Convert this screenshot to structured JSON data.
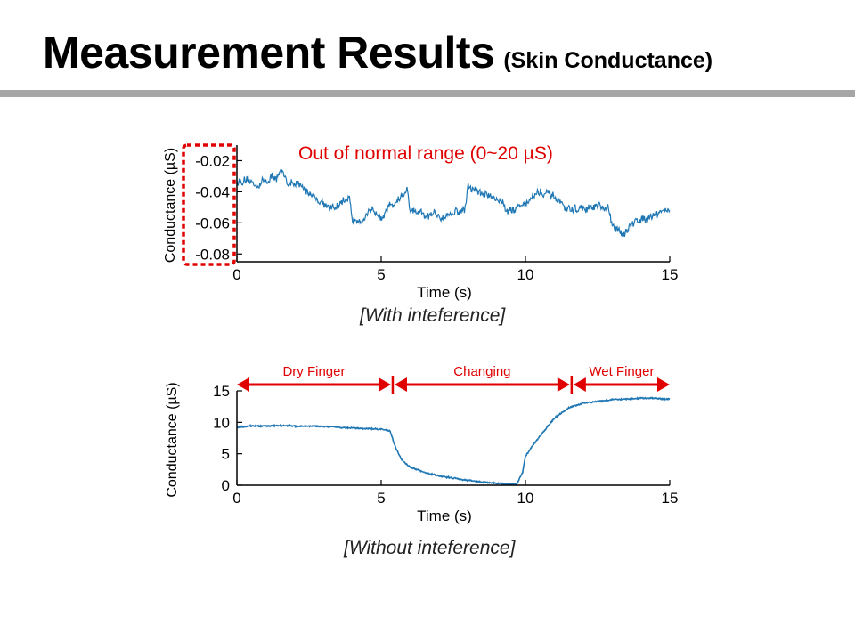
{
  "slide": {
    "title": "Measurement Results",
    "subtitle": "(Skin Conductance)"
  },
  "colors": {
    "series": "#1f77b4",
    "annotation": "#e00000",
    "rule": "#a6a6a6"
  },
  "chart_data": [
    {
      "type": "line",
      "title": "",
      "xlabel": "Time (s)",
      "ylabel": "Conductance (µS)",
      "xlim": [
        0,
        15
      ],
      "ylim": [
        -0.085,
        -0.01
      ],
      "xticks": [
        0,
        5,
        10,
        15
      ],
      "yticks": [
        -0.02,
        -0.04,
        -0.06,
        -0.08
      ],
      "ytick_labels": [
        "-0.02",
        "-0.04",
        "-0.06",
        "-0.08"
      ],
      "grid": false,
      "annotation": "Out of normal range (0~20 µS)",
      "caption": "[With inteference]",
      "series": [
        {
          "x": [
            0,
            0.5,
            1.0,
            1.5,
            2.0,
            2.5,
            3.0,
            3.5,
            3.9,
            4.0,
            4.5,
            5.0,
            5.5,
            5.9,
            6.0,
            6.5,
            7.0,
            7.5,
            7.9,
            8.0,
            8.5,
            9.0,
            9.5,
            10.0,
            10.5,
            11.0,
            11.5,
            12.0,
            12.5,
            12.9,
            13.0,
            13.5,
            14.0,
            14.5,
            15.0
          ],
          "y": [
            -0.033,
            -0.036,
            -0.033,
            -0.029,
            -0.036,
            -0.04,
            -0.047,
            -0.051,
            -0.043,
            -0.058,
            -0.056,
            -0.053,
            -0.046,
            -0.039,
            -0.053,
            -0.057,
            -0.055,
            -0.053,
            -0.052,
            -0.037,
            -0.041,
            -0.044,
            -0.052,
            -0.046,
            -0.04,
            -0.045,
            -0.052,
            -0.051,
            -0.05,
            -0.053,
            -0.064,
            -0.065,
            -0.057,
            -0.053,
            -0.051
          ]
        }
      ]
    },
    {
      "type": "line",
      "title": "",
      "xlabel": "Time (s)",
      "ylabel": "Conductance (µS)",
      "xlim": [
        0,
        15
      ],
      "ylim": [
        0,
        15
      ],
      "xticks": [
        0,
        5,
        10,
        15
      ],
      "yticks": [
        0,
        5,
        10,
        15
      ],
      "grid": false,
      "caption": "[Without inteference]",
      "regions": [
        {
          "label": "Dry Finger",
          "x": [
            0,
            5.4
          ]
        },
        {
          "label": "Changing",
          "x": [
            5.4,
            11.6
          ]
        },
        {
          "label": "Wet Finger",
          "x": [
            11.6,
            15
          ]
        }
      ],
      "series": [
        {
          "x": [
            0,
            0.5,
            1.0,
            1.5,
            2.0,
            2.5,
            3.0,
            3.5,
            4.0,
            4.5,
            5.0,
            5.3,
            5.5,
            5.7,
            6.0,
            6.5,
            7.0,
            7.5,
            8.0,
            8.5,
            9.0,
            9.5,
            9.7,
            9.9,
            10.0,
            10.2,
            10.5,
            10.8,
            11.0,
            11.5,
            12.0,
            12.5,
            13.0,
            13.5,
            14.0,
            14.5,
            15.0
          ],
          "y": [
            9.2,
            9.4,
            9.4,
            9.5,
            9.4,
            9.4,
            9.3,
            9.2,
            9.1,
            9.0,
            8.9,
            8.7,
            6.0,
            4.1,
            2.9,
            2.0,
            1.5,
            1.1,
            0.8,
            0.5,
            0.3,
            0.2,
            0.1,
            2.0,
            4.6,
            6.0,
            7.8,
            9.5,
            10.6,
            12.3,
            13.0,
            13.4,
            13.6,
            13.7,
            13.8,
            13.8,
            13.7
          ]
        }
      ]
    }
  ]
}
